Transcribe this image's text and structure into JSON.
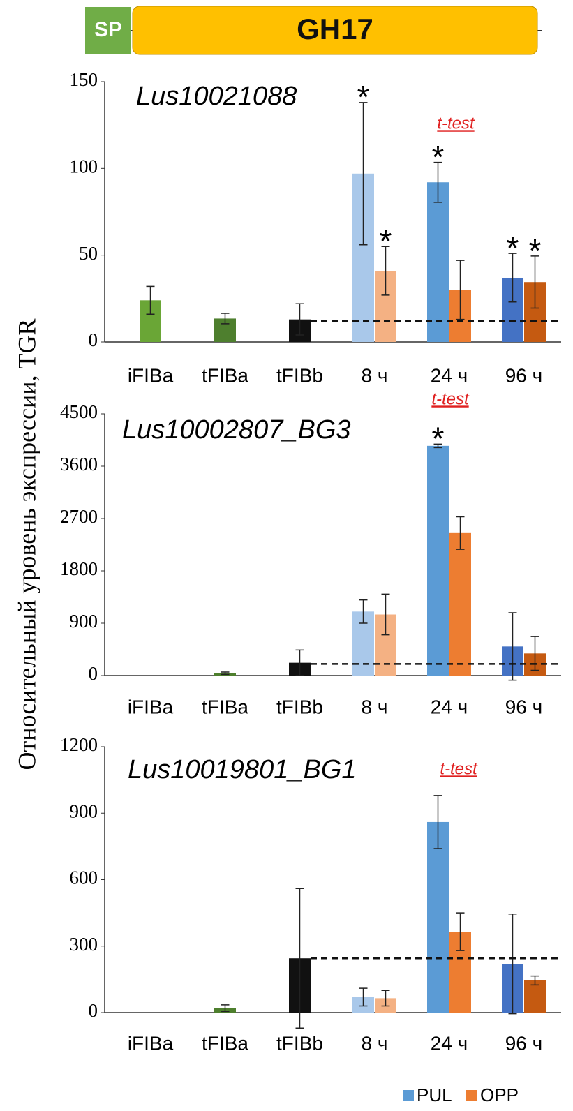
{
  "header": {
    "domains": [
      "SP",
      "GH17"
    ]
  },
  "y_label": "Относительный уровень экспрессии, TGR",
  "legend": [
    {
      "name": "PUL",
      "color": "#5b9bd5"
    },
    {
      "name": "OPP",
      "color": "#ed7d31"
    }
  ],
  "chart_data": [
    {
      "type": "bar",
      "title": "Lus10021088",
      "note": "t-test",
      "categories": [
        "iFIBa",
        "tFIBa",
        "tFIBb",
        "8 ч",
        "24 ч",
        "96 ч"
      ],
      "ylim": [
        0,
        150
      ],
      "yticks": [
        0,
        50,
        100,
        150
      ],
      "baseline": 12,
      "control": {
        "values": [
          24,
          13.5,
          13,
          null,
          null,
          null
        ],
        "errors": [
          8,
          3,
          9,
          null,
          null,
          null
        ],
        "colors": [
          "#6aa636",
          "#4e7f2e",
          "#111111",
          null,
          null,
          null
        ]
      },
      "series": [
        {
          "values": [
            null,
            null,
            null,
            97,
            92,
            37
          ],
          "errors": [
            null,
            null,
            null,
            41,
            11.5,
            14
          ],
          "colors": [
            null,
            null,
            null,
            "#a9c8ea",
            "#5b9bd5",
            "#4472c4"
          ],
          "labels": [
            null,
            null,
            null,
            "*",
            "*",
            "*"
          ]
        },
        {
          "values": [
            null,
            null,
            null,
            41,
            30,
            34.5
          ],
          "errors": [
            null,
            null,
            null,
            14,
            17,
            15
          ],
          "colors": [
            null,
            null,
            null,
            "#f4b183",
            "#ed7d31",
            "#c55a11"
          ],
          "labels": [
            null,
            null,
            null,
            "*",
            null,
            "*"
          ]
        }
      ]
    },
    {
      "type": "bar",
      "title": "Lus10002807_BG3",
      "note": "t-test",
      "categories": [
        "iFIBa",
        "tFIBa",
        "tFIBb",
        "8 ч",
        "24 ч",
        "96 ч"
      ],
      "ylim": [
        0,
        4500
      ],
      "yticks": [
        0,
        900,
        1800,
        2700,
        3600,
        4500
      ],
      "baseline": 200,
      "control": {
        "values": [
          0,
          40,
          220,
          null,
          null,
          null
        ],
        "errors": [
          null,
          20,
          220,
          null,
          null,
          null
        ],
        "colors": [
          "#6aa636",
          "#4e7f2e",
          "#111111",
          null,
          null,
          null
        ]
      },
      "series": [
        {
          "values": [
            null,
            null,
            null,
            1100,
            3950,
            500
          ],
          "errors": [
            null,
            null,
            null,
            200,
            30,
            580
          ],
          "colors": [
            null,
            null,
            null,
            "#a9c8ea",
            "#5b9bd5",
            "#4472c4"
          ],
          "labels": [
            null,
            null,
            null,
            null,
            "*",
            null
          ]
        },
        {
          "values": [
            null,
            null,
            null,
            1050,
            2450,
            380
          ],
          "errors": [
            null,
            null,
            null,
            350,
            280,
            290
          ],
          "colors": [
            null,
            null,
            null,
            "#f4b183",
            "#ed7d31",
            "#c55a11"
          ],
          "labels": [
            null,
            null,
            null,
            null,
            null,
            null
          ]
        }
      ]
    },
    {
      "type": "bar",
      "title": "Lus10019801_BG1",
      "note": "t-test",
      "categories": [
        "iFIBa",
        "tFIBa",
        "tFIBb",
        "8 ч",
        "24 ч",
        "96 ч"
      ],
      "ylim": [
        0,
        1200
      ],
      "yticks": [
        0,
        300,
        600,
        900,
        1200
      ],
      "baseline": 245,
      "control": {
        "values": [
          0,
          20,
          245,
          null,
          null,
          null
        ],
        "errors": [
          null,
          15,
          315,
          null,
          null,
          null
        ],
        "colors": [
          "#6aa636",
          "#4e7f2e",
          "#111111",
          null,
          null,
          null
        ]
      },
      "series": [
        {
          "values": [
            null,
            null,
            null,
            70,
            860,
            220
          ],
          "errors": [
            null,
            null,
            null,
            40,
            120,
            225
          ],
          "colors": [
            null,
            null,
            null,
            "#a9c8ea",
            "#5b9bd5",
            "#4472c4"
          ],
          "labels": [
            null,
            null,
            null,
            null,
            null,
            null
          ]
        },
        {
          "values": [
            null,
            null,
            null,
            65,
            365,
            145
          ],
          "errors": [
            null,
            null,
            null,
            35,
            85,
            20
          ],
          "colors": [
            null,
            null,
            null,
            "#f4b183",
            "#ed7d31",
            "#c55a11"
          ],
          "labels": [
            null,
            null,
            null,
            null,
            null,
            null
          ]
        }
      ]
    }
  ]
}
